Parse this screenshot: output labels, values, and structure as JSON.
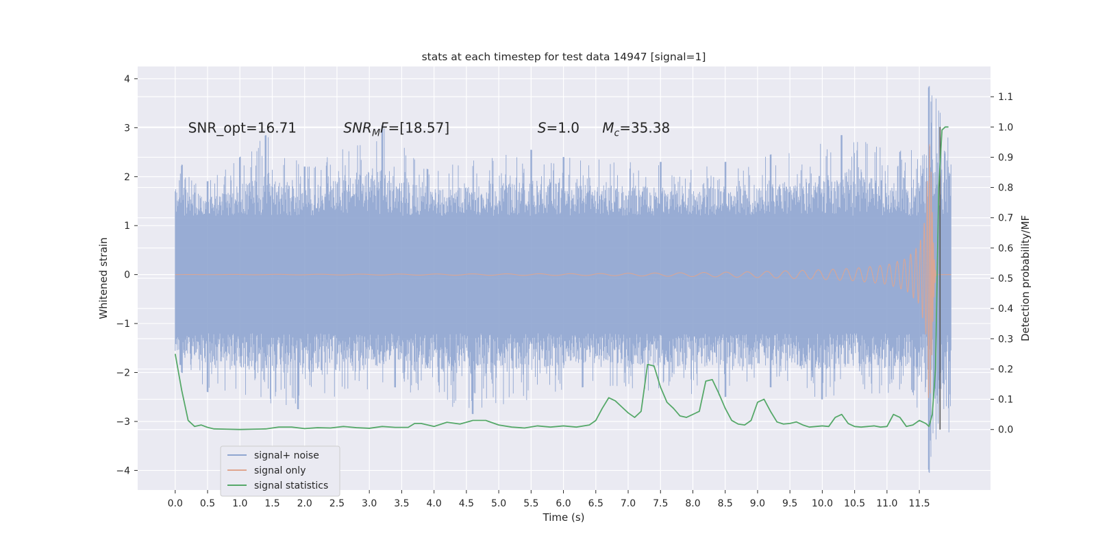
{
  "chart_data": {
    "type": "line",
    "title": "stats at each timestep for test data 14947 [signal=1]",
    "xlabel": "Time (s)",
    "ylabel": "Whitened strain",
    "ylabel_right": "Detection probability/MF",
    "xlim": [
      -0.58,
      12.6
    ],
    "ylim": [
      -4.4,
      4.25
    ],
    "ylim_right": [
      -0.2,
      1.2
    ],
    "x_ticks": [
      0.0,
      0.5,
      1.0,
      1.5,
      2.0,
      2.5,
      3.0,
      3.5,
      4.0,
      4.5,
      5.0,
      5.5,
      6.0,
      6.5,
      7.0,
      7.5,
      8.0,
      8.5,
      9.0,
      9.5,
      10.0,
      10.5,
      11.0,
      11.5
    ],
    "x_tick_labels": [
      "0.0",
      "0.5",
      "1.0",
      "1.5",
      "2.0",
      "2.5",
      "3.0",
      "3.5",
      "4.0",
      "4.5",
      "5.0",
      "5.5",
      "6.0",
      "6.5",
      "7.0",
      "7.5",
      "8.0",
      "8.5",
      "9.0",
      "9.5",
      "10.0",
      "10.5",
      "11.0",
      "11.5"
    ],
    "y_ticks": [
      -4,
      -3,
      -2,
      -1,
      0,
      1,
      2,
      3,
      4
    ],
    "y_tick_labels": [
      "−4",
      "−3",
      "−2",
      "−1",
      "0",
      "1",
      "2",
      "3",
      "4"
    ],
    "y2_ticks": [
      0.0,
      0.1,
      0.2,
      0.3,
      0.4,
      0.5,
      0.6,
      0.7,
      0.8,
      0.9,
      1.0,
      1.1
    ],
    "y2_tick_labels": [
      "0.0",
      "0.1",
      "0.2",
      "0.3",
      "0.4",
      "0.5",
      "0.6",
      "0.7",
      "0.8",
      "0.9",
      "1.0",
      "1.1"
    ],
    "grid": true,
    "legend_position": "bottom-left",
    "annotations": [
      {
        "prefix": "SNR_opt=16.71",
        "x": 0.2,
        "y": 3.0
      },
      {
        "prefix": "SNR",
        "sub": "M",
        "suffix": "F=[18.57]",
        "x": 2.6,
        "y": 3.0
      },
      {
        "prefix": "S",
        "suffix": "=1.0",
        "x": 5.6,
        "y": 3.0
      },
      {
        "prefix": "M",
        "sub": "c",
        "suffix": "=35.38",
        "x": 6.6,
        "y": 3.0
      }
    ],
    "series": [
      {
        "name": "signal+ noise",
        "color": "#8fa5d0",
        "x_range": [
          0.0,
          11.99
        ],
        "band": [
          -1.2,
          1.2
        ],
        "peak_points": [
          [
            0.0,
            1.7
          ],
          [
            0.1,
            2.25
          ],
          [
            0.5,
            1.9
          ],
          [
            1.0,
            2.4
          ],
          [
            1.4,
            2.85
          ],
          [
            2.0,
            2.2
          ],
          [
            3.2,
            3.05
          ],
          [
            3.9,
            2.15
          ],
          [
            5.5,
            2.55
          ],
          [
            6.0,
            2.4
          ],
          [
            7.5,
            2.3
          ],
          [
            8.5,
            2.3
          ],
          [
            9.2,
            2.45
          ],
          [
            10.3,
            2.85
          ],
          [
            11.2,
            2.5
          ],
          [
            11.65,
            3.85
          ]
        ],
        "trough_points": [
          [
            0.1,
            -2.0
          ],
          [
            0.5,
            -2.4
          ],
          [
            1.9,
            -2.75
          ],
          [
            3.4,
            -2.3
          ],
          [
            4.6,
            -2.85
          ],
          [
            6.3,
            -2.3
          ],
          [
            8.5,
            -2.5
          ],
          [
            9.2,
            -2.3
          ],
          [
            10.0,
            -2.55
          ],
          [
            11.4,
            -2.4
          ],
          [
            11.65,
            -4.05
          ]
        ]
      },
      {
        "name": "signal only",
        "color": "#e0a58e",
        "x": [
          0.0,
          6.5,
          8.0,
          9.0,
          10.0,
          10.5,
          11.0,
          11.3,
          11.5,
          11.6,
          11.65,
          11.68,
          11.7,
          11.72,
          11.74,
          11.76,
          11.99
        ],
        "amplitude": [
          0.0,
          0.02,
          0.04,
          0.06,
          0.1,
          0.13,
          0.2,
          0.33,
          0.6,
          1.2,
          2.8,
          2.3,
          1.4,
          0.6,
          0.2,
          0.0,
          0.0
        ],
        "centre": 0.0
      },
      {
        "name": "signal statistics",
        "color": "#55a868",
        "axis": "right",
        "x": [
          0.0,
          0.1,
          0.2,
          0.3,
          0.4,
          0.5,
          0.6,
          0.8,
          1.0,
          1.2,
          1.4,
          1.5,
          1.6,
          1.8,
          2.0,
          2.2,
          2.4,
          2.6,
          2.8,
          3.0,
          3.2,
          3.4,
          3.6,
          3.7,
          3.8,
          4.0,
          4.2,
          4.4,
          4.6,
          4.8,
          5.0,
          5.2,
          5.4,
          5.6,
          5.8,
          6.0,
          6.2,
          6.4,
          6.5,
          6.6,
          6.7,
          6.8,
          6.9,
          7.0,
          7.1,
          7.2,
          7.3,
          7.4,
          7.5,
          7.6,
          7.7,
          7.8,
          7.9,
          8.0,
          8.1,
          8.2,
          8.3,
          8.4,
          8.5,
          8.6,
          8.7,
          8.8,
          8.9,
          9.0,
          9.1,
          9.2,
          9.3,
          9.4,
          9.5,
          9.6,
          9.7,
          9.8,
          9.9,
          10.0,
          10.1,
          10.2,
          10.3,
          10.4,
          10.5,
          10.6,
          10.7,
          10.8,
          10.9,
          11.0,
          11.1,
          11.2,
          11.3,
          11.4,
          11.5,
          11.6,
          11.65,
          11.7,
          11.75,
          11.8,
          11.85,
          11.9,
          11.95
        ],
        "y": [
          0.25,
          0.13,
          0.03,
          0.01,
          0.015,
          0.007,
          0.002,
          0.001,
          0.0,
          0.001,
          0.002,
          0.005,
          0.008,
          0.008,
          0.003,
          0.006,
          0.005,
          0.01,
          0.006,
          0.004,
          0.01,
          0.007,
          0.007,
          0.02,
          0.02,
          0.01,
          0.024,
          0.018,
          0.03,
          0.03,
          0.015,
          0.008,
          0.005,
          0.012,
          0.008,
          0.012,
          0.008,
          0.015,
          0.03,
          0.07,
          0.105,
          0.095,
          0.075,
          0.055,
          0.04,
          0.06,
          0.215,
          0.21,
          0.14,
          0.09,
          0.07,
          0.045,
          0.04,
          0.05,
          0.06,
          0.16,
          0.165,
          0.12,
          0.07,
          0.03,
          0.018,
          0.015,
          0.03,
          0.09,
          0.1,
          0.06,
          0.025,
          0.018,
          0.02,
          0.025,
          0.015,
          0.008,
          0.01,
          0.012,
          0.01,
          0.04,
          0.05,
          0.02,
          0.01,
          0.008,
          0.01,
          0.012,
          0.008,
          0.01,
          0.05,
          0.04,
          0.01,
          0.015,
          0.03,
          0.02,
          0.01,
          0.05,
          0.2,
          0.8,
          0.99,
          1.0,
          1.0
        ]
      }
    ],
    "markers": [
      {
        "name": "merger-vline",
        "color": "#555555",
        "x": 11.82,
        "y_range": [
          0.0,
          1.0
        ]
      }
    ]
  }
}
